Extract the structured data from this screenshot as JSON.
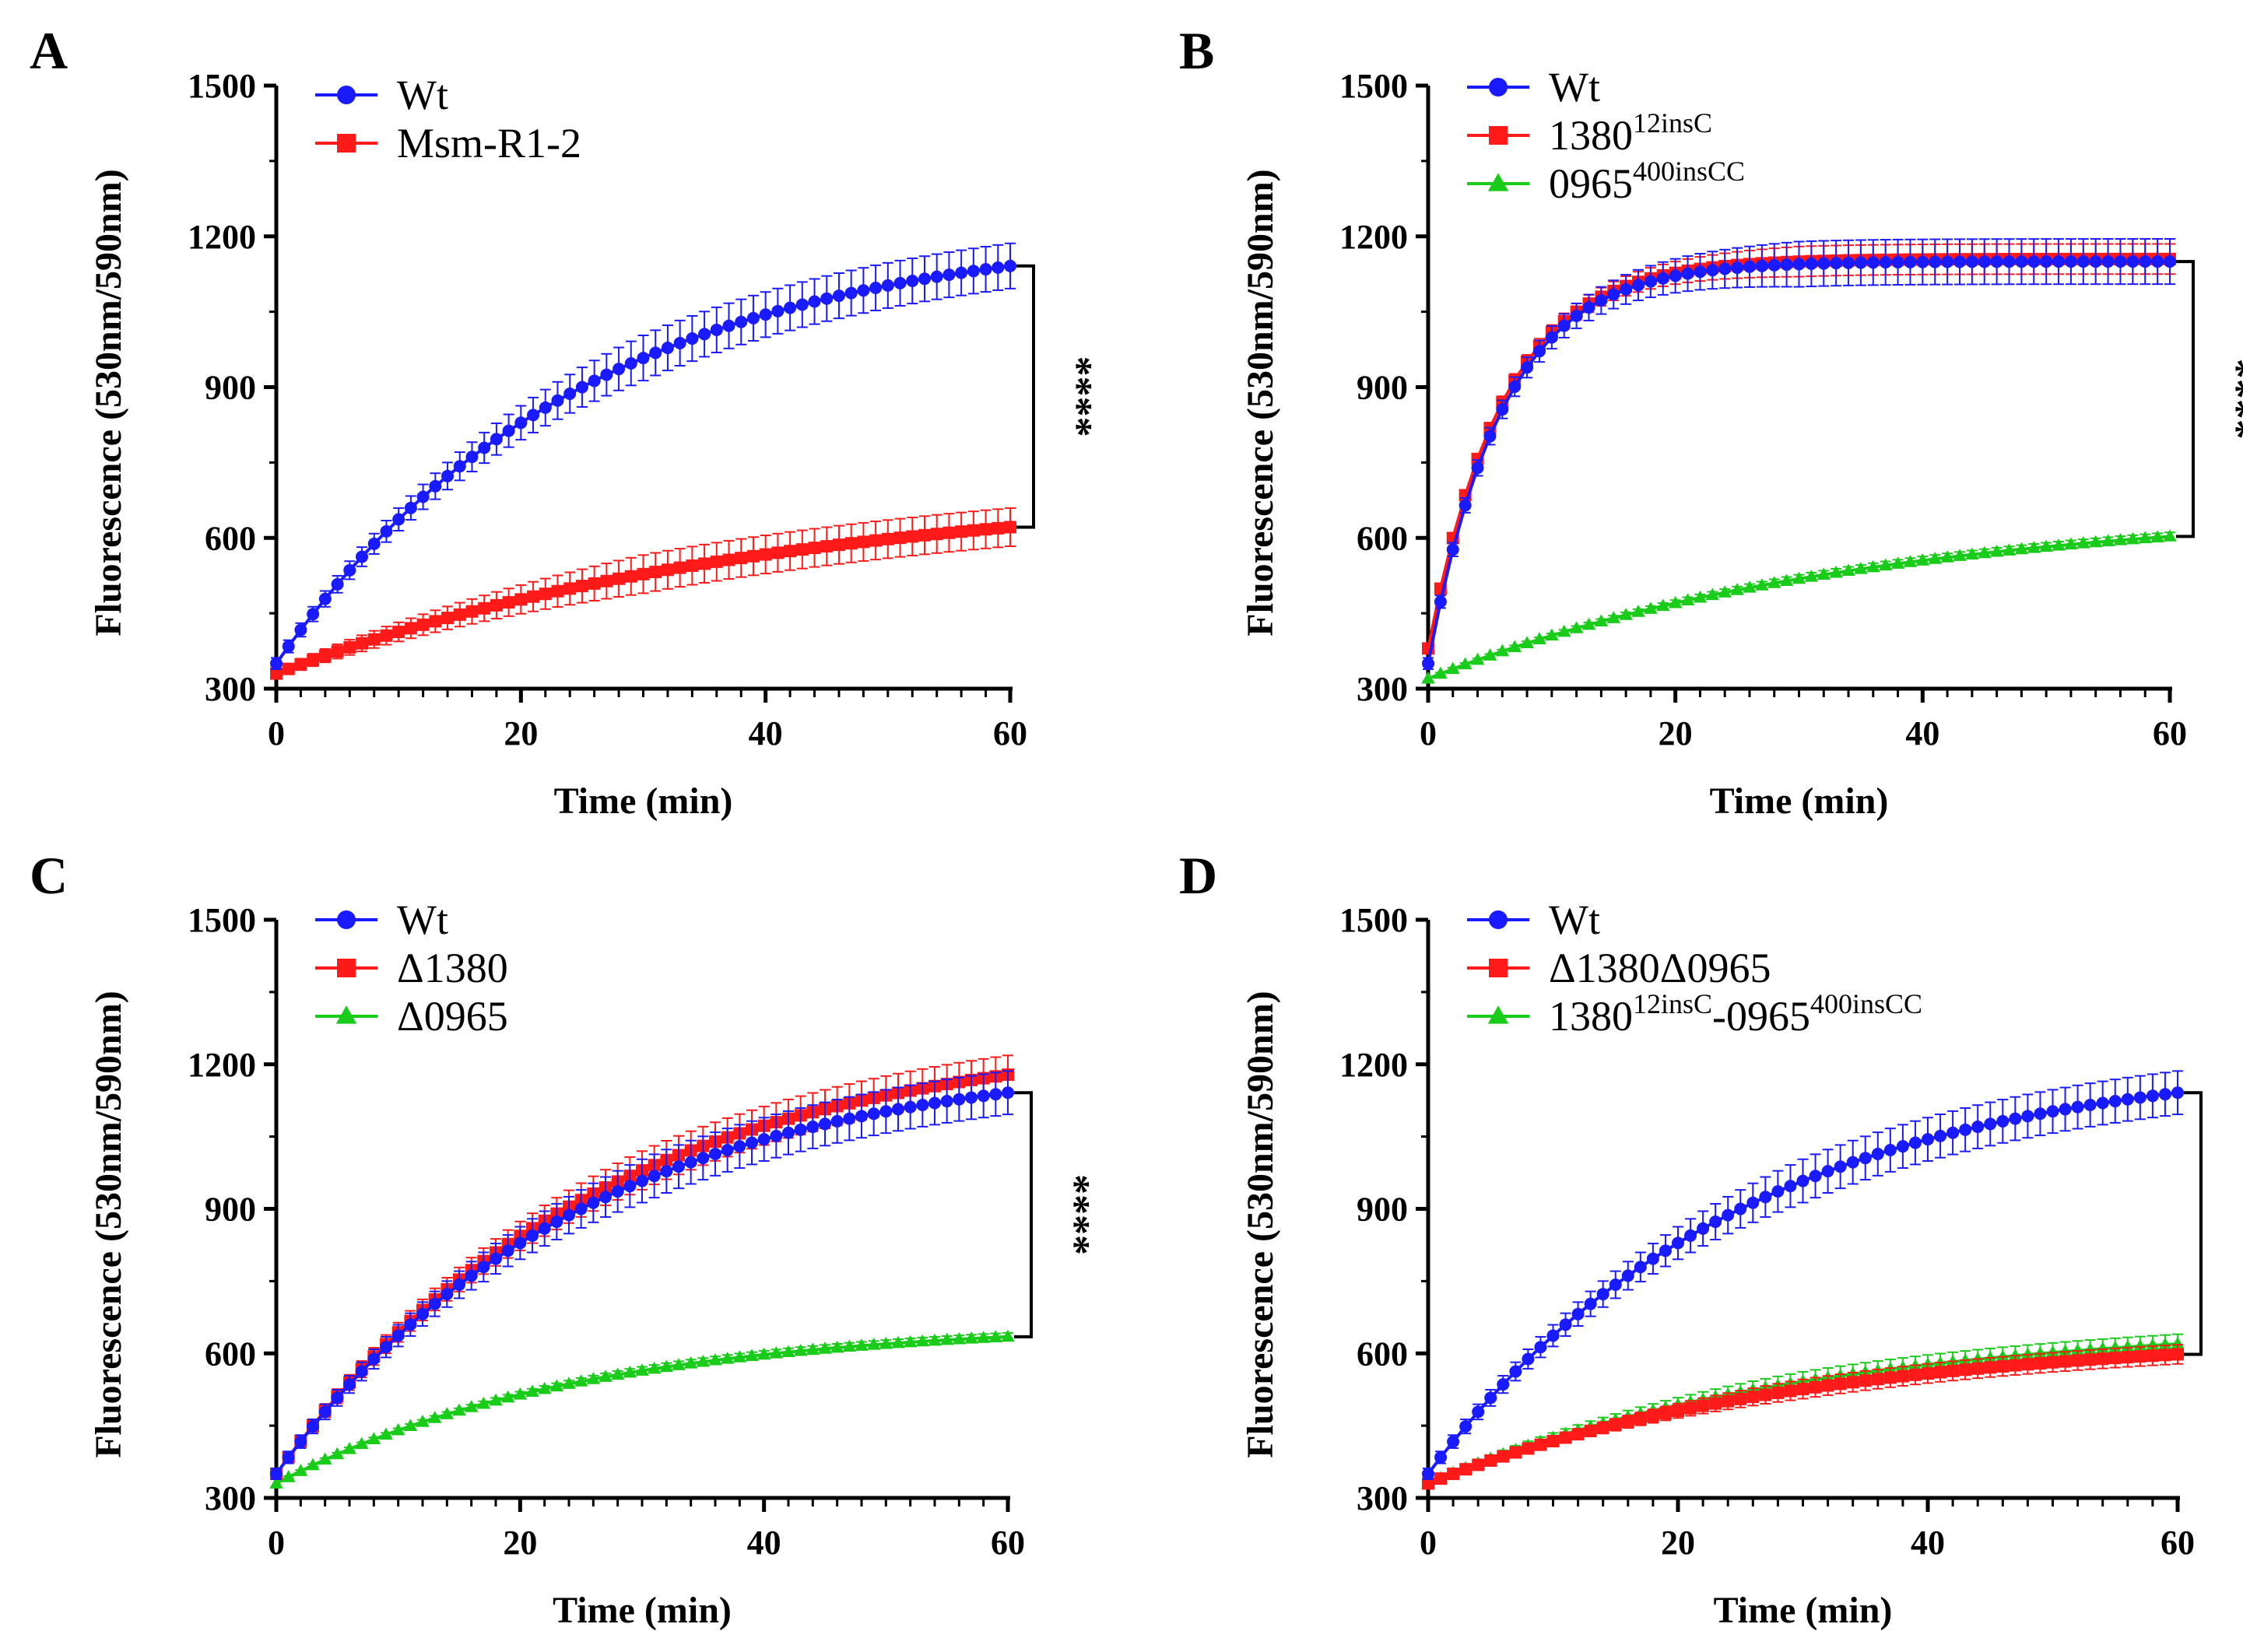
{
  "figure": {
    "background": "#ffffff"
  },
  "chart_data": [
    {
      "panel": "A",
      "type": "line",
      "title": "",
      "xlabel": "Time (min)",
      "ylabel": "Fluorescence (530nm/590nm)",
      "xlim": [
        0,
        60
      ],
      "ylim": [
        300,
        1500
      ],
      "xticks": [
        0,
        20,
        40,
        60
      ],
      "yticks": [
        300,
        600,
        900,
        1200,
        1500
      ],
      "grid": false,
      "legend_position": "top-left",
      "significance": {
        "label": "****",
        "between": [
          "Wt",
          "Msm-R1-2"
        ],
        "at_x": 60
      },
      "series": [
        {
          "name": "Wt",
          "legend_label": "Wt",
          "color": "#1a1aff",
          "marker": "circle",
          "model": {
            "start": 350,
            "end": 1220,
            "tau": 25,
            "error": 45
          }
        },
        {
          "name": "Msm-R1-2",
          "legend_label": "Msm-R1-2",
          "color": "#ff1a1a",
          "marker": "square",
          "model": {
            "start": 330,
            "end": 705,
            "tau": 40,
            "error": 38
          }
        }
      ]
    },
    {
      "panel": "B",
      "type": "line",
      "title": "",
      "xlabel": "Time (min)",
      "ylabel": "Fluorescence (530nm/590nm)",
      "xlim": [
        0,
        60
      ],
      "ylim": [
        300,
        1500
      ],
      "xticks": [
        0,
        20,
        40,
        60
      ],
      "yticks": [
        300,
        600,
        900,
        1200,
        1500
      ],
      "grid": false,
      "legend_position": "top-left",
      "significance": {
        "label": "****",
        "between": [
          "Wt",
          "0965-400insCC"
        ],
        "at_x": 60
      },
      "series": [
        {
          "name": "Wt",
          "legend_label": "Wt",
          "color": "#1a1aff",
          "marker": "circle",
          "model": {
            "start": 350,
            "end": 1150,
            "tau": 6,
            "error": 45
          }
        },
        {
          "name": "1380-12insC",
          "legend_label": "1380",
          "legend_sup": "12insC",
          "color": "#ff1a1a",
          "marker": "square",
          "model": {
            "start": 380,
            "end": 1155,
            "tau": 6,
            "error": 30
          }
        },
        {
          "name": "0965-400insCC",
          "legend_label": "0965",
          "legend_sup": "400insCC",
          "color": "#1acc1a",
          "marker": "triangle",
          "model": {
            "start": 320,
            "end": 665,
            "tau": 35,
            "error": 8
          }
        }
      ]
    },
    {
      "panel": "C",
      "type": "line",
      "title": "",
      "xlabel": "Time (min)",
      "ylabel": "Fluorescence (530nm/590nm)",
      "xlim": [
        0,
        60
      ],
      "ylim": [
        300,
        1500
      ],
      "xticks": [
        0,
        20,
        40,
        60
      ],
      "yticks": [
        300,
        600,
        900,
        1200,
        1500
      ],
      "grid": false,
      "legend_position": "top-left",
      "significance": {
        "label": "****",
        "between": [
          "Wt",
          "Δ0965"
        ],
        "at_x": 60
      },
      "series": [
        {
          "name": "Wt",
          "legend_label": "Wt",
          "color": "#1a1aff",
          "marker": "circle",
          "model": {
            "start": 350,
            "end": 1220,
            "tau": 25,
            "error": 45
          }
        },
        {
          "name": "Δ1380",
          "legend_label": "Δ1380",
          "color": "#ff1a1a",
          "marker": "square",
          "model": {
            "start": 350,
            "end": 1270,
            "tau": 26,
            "error": 40
          }
        },
        {
          "name": "Δ0965",
          "legend_label": "Δ0965",
          "color": "#1acc1a",
          "marker": "triangle",
          "model": {
            "start": 330,
            "end": 665,
            "tau": 25,
            "error": 8
          }
        }
      ]
    },
    {
      "panel": "D",
      "type": "line",
      "title": "",
      "xlabel": "Time (min)",
      "ylabel": "Fluorescence (530nm/590nm)",
      "xlim": [
        0,
        60
      ],
      "ylim": [
        300,
        1500
      ],
      "xticks": [
        0,
        20,
        40,
        60
      ],
      "yticks": [
        300,
        600,
        900,
        1200,
        1500
      ],
      "grid": false,
      "legend_position": "top-left",
      "significance": {
        "label": "****",
        "between": [
          "Wt",
          "Δ1380Δ0965"
        ],
        "at_x": 60
      },
      "series": [
        {
          "name": "Wt",
          "legend_label": "Wt",
          "color": "#1a1aff",
          "marker": "circle",
          "model": {
            "start": 350,
            "end": 1220,
            "tau": 25,
            "error": 45
          }
        },
        {
          "name": "Δ1380Δ0965",
          "legend_label": "Δ1380Δ0965",
          "color": "#ff1a1a",
          "marker": "square",
          "model": {
            "start": 330,
            "end": 640,
            "tau": 30,
            "error": 20
          }
        },
        {
          "name": "1380-12insC-0965-400insCC",
          "legend_label": "1380",
          "legend_sup": "12insC",
          "legend_mid": "-0965",
          "legend_sup2": "400insCC",
          "color": "#1acc1a",
          "marker": "triangle",
          "model": {
            "start": 330,
            "end": 665,
            "tau": 30,
            "error": 20
          }
        }
      ]
    }
  ]
}
